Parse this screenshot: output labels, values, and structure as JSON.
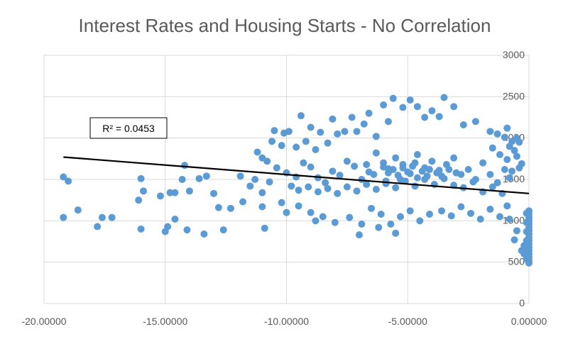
{
  "chart_data": {
    "type": "scatter",
    "title": "Interest Rates and Housing Starts - No Correlation",
    "xlabel": "",
    "ylabel": "",
    "xlim": [
      -20,
      0
    ],
    "ylim": [
      0,
      3000
    ],
    "x_ticks": [
      "-20.00000",
      "-15.00000",
      "-10.00000",
      "-5.00000",
      "0.00000"
    ],
    "y_ticks": [
      "0",
      "500",
      "1000",
      "1500",
      "2000",
      "2500",
      "3000"
    ],
    "grid": "vertical-and-horizontal",
    "legend": "none",
    "colors": {
      "points": "#5b9bd5",
      "trendline": "#000000",
      "grid": "#d9d9d9",
      "text": "#595959"
    },
    "trendline": {
      "type": "linear",
      "x": [
        -19.2,
        0
      ],
      "y": [
        1770,
        1330
      ],
      "label": "R² = 0.0453"
    },
    "series": [
      {
        "points": [
          [
            -19.2,
            1530
          ],
          [
            -19.0,
            1480
          ],
          [
            -19.2,
            1040
          ],
          [
            -18.6,
            1130
          ],
          [
            -17.8,
            930
          ],
          [
            -17.6,
            1040
          ],
          [
            -17.2,
            1040
          ],
          [
            -16.0,
            1510
          ],
          [
            -15.9,
            1360
          ],
          [
            -16.1,
            1250
          ],
          [
            -16.0,
            900
          ],
          [
            -15.2,
            1300
          ],
          [
            -14.8,
            1340
          ],
          [
            -14.6,
            1340
          ],
          [
            -14.2,
            1670
          ],
          [
            -14.3,
            1500
          ],
          [
            -14.0,
            1360
          ],
          [
            -13.6,
            1510
          ],
          [
            -13.3,
            1540
          ],
          [
            -13.0,
            1330
          ],
          [
            -12.8,
            1160
          ],
          [
            -12.3,
            1150
          ],
          [
            -11.8,
            1230
          ],
          [
            -11.9,
            1540
          ],
          [
            -11.5,
            1420
          ],
          [
            -11.3,
            1500
          ],
          [
            -11.0,
            1340
          ],
          [
            -11.0,
            1170
          ],
          [
            -10.7,
            1470
          ],
          [
            -10.2,
            1220
          ],
          [
            -10.0,
            1100
          ],
          [
            -13.4,
            840
          ],
          [
            -12.6,
            890
          ],
          [
            -14.6,
            1020
          ],
          [
            -15.0,
            870
          ],
          [
            -14.9,
            930
          ],
          [
            -14.1,
            890
          ],
          [
            -10.9,
            910
          ],
          [
            -11.2,
            1830
          ],
          [
            -11.0,
            1760
          ],
          [
            -10.6,
            1960
          ],
          [
            -10.5,
            2090
          ],
          [
            -10.2,
            1910
          ],
          [
            -10.1,
            2060
          ],
          [
            -9.9,
            2080
          ],
          [
            -9.6,
            1890
          ],
          [
            -9.4,
            2270
          ],
          [
            -9.2,
            1960
          ],
          [
            -9.0,
            2130
          ],
          [
            -8.8,
            1860
          ],
          [
            -8.6,
            2070
          ],
          [
            -8.3,
            1940
          ],
          [
            -8.1,
            2230
          ],
          [
            -7.9,
            2050
          ],
          [
            -7.6,
            2080
          ],
          [
            -7.3,
            2250
          ],
          [
            -7.1,
            2080
          ],
          [
            -6.8,
            2170
          ],
          [
            -6.6,
            2300
          ],
          [
            -6.3,
            2020
          ],
          [
            -6.0,
            2400
          ],
          [
            -5.8,
            2200
          ],
          [
            -5.6,
            2480
          ],
          [
            -5.2,
            2370
          ],
          [
            -4.9,
            2460
          ],
          [
            -4.6,
            2380
          ],
          [
            -4.3,
            2250
          ],
          [
            -4.0,
            2330
          ],
          [
            -3.7,
            2260
          ],
          [
            -3.5,
            2490
          ],
          [
            -3.1,
            2380
          ],
          [
            -2.7,
            2160
          ],
          [
            -2.2,
            2200
          ],
          [
            -1.6,
            2080
          ],
          [
            -1.3,
            2050
          ],
          [
            -1.0,
            2010
          ],
          [
            -0.9,
            2120
          ],
          [
            -0.7,
            1960
          ],
          [
            -10.8,
            1720
          ],
          [
            -10.4,
            1640
          ],
          [
            -10.0,
            1580
          ],
          [
            -9.6,
            1530
          ],
          [
            -9.3,
            1700
          ],
          [
            -9.0,
            1650
          ],
          [
            -8.7,
            1520
          ],
          [
            -8.4,
            1460
          ],
          [
            -8.1,
            1600
          ],
          [
            -7.8,
            1550
          ],
          [
            -7.5,
            1720
          ],
          [
            -7.2,
            1660
          ],
          [
            -6.9,
            1500
          ],
          [
            -6.6,
            1590
          ],
          [
            -6.3,
            1820
          ],
          [
            -6.0,
            1700
          ],
          [
            -5.8,
            1630
          ],
          [
            -5.5,
            1760
          ],
          [
            -5.2,
            1680
          ],
          [
            -4.9,
            1570
          ],
          [
            -4.6,
            1800
          ],
          [
            -4.3,
            1640
          ],
          [
            -4.0,
            1720
          ],
          [
            -3.7,
            1610
          ],
          [
            -3.4,
            1680
          ],
          [
            -3.1,
            1760
          ],
          [
            -2.8,
            1560
          ],
          [
            -2.5,
            1620
          ],
          [
            -2.2,
            1500
          ],
          [
            -1.9,
            1700
          ],
          [
            -1.6,
            1560
          ],
          [
            -1.3,
            1460
          ],
          [
            -1.0,
            1620
          ],
          [
            -0.8,
            1520
          ],
          [
            -9.8,
            1420
          ],
          [
            -9.5,
            1370
          ],
          [
            -9.1,
            1410
          ],
          [
            -8.7,
            1350
          ],
          [
            -8.3,
            1390
          ],
          [
            -7.9,
            1330
          ],
          [
            -7.5,
            1410
          ],
          [
            -7.1,
            1360
          ],
          [
            -6.7,
            1440
          ],
          [
            -6.3,
            1380
          ],
          [
            -5.9,
            1450
          ],
          [
            -5.5,
            1400
          ],
          [
            -5.1,
            1480
          ],
          [
            -4.7,
            1420
          ],
          [
            -4.3,
            1500
          ],
          [
            -3.9,
            1440
          ],
          [
            -3.5,
            1510
          ],
          [
            -3.1,
            1430
          ],
          [
            -2.7,
            1400
          ],
          [
            -2.3,
            1470
          ],
          [
            -1.9,
            1350
          ],
          [
            -1.5,
            1410
          ],
          [
            -1.1,
            1330
          ],
          [
            -9.5,
            1180
          ],
          [
            -9.0,
            1100
          ],
          [
            -8.5,
            1050
          ],
          [
            -8.0,
            980
          ],
          [
            -7.4,
            1040
          ],
          [
            -6.9,
            960
          ],
          [
            -6.5,
            1150
          ],
          [
            -6.1,
            1080
          ],
          [
            -5.7,
            960
          ],
          [
            -5.3,
            1050
          ],
          [
            -4.9,
            1120
          ],
          [
            -4.5,
            1000
          ],
          [
            -4.1,
            1080
          ],
          [
            -3.6,
            1120
          ],
          [
            -3.2,
            1060
          ],
          [
            -2.8,
            1170
          ],
          [
            -2.4,
            1090
          ],
          [
            -2.0,
            1020
          ],
          [
            -1.6,
            1140
          ],
          [
            -1.2,
            1050
          ],
          [
            -0.9,
            1180
          ],
          [
            -7.0,
            830
          ],
          [
            -6.2,
            920
          ],
          [
            -5.5,
            850
          ],
          [
            -8.8,
            1000
          ],
          [
            -6.0,
            1650
          ],
          [
            -5.8,
            1580
          ],
          [
            -5.6,
            1620
          ],
          [
            -5.4,
            1550
          ],
          [
            -5.2,
            1640
          ],
          [
            -5.0,
            1590
          ],
          [
            -4.8,
            1660
          ],
          [
            -4.6,
            1520
          ],
          [
            -4.4,
            1600
          ],
          [
            -4.2,
            1540
          ],
          [
            -5.9,
            1480
          ],
          [
            -5.3,
            1500
          ],
          [
            -4.7,
            1700
          ],
          [
            -4.1,
            1620
          ],
          [
            -6.4,
            1560
          ],
          [
            -6.7,
            1680
          ],
          [
            -3.8,
            1580
          ],
          [
            -3.6,
            1540
          ],
          [
            -3.3,
            1620
          ],
          [
            -3.0,
            1580
          ],
          [
            -1.5,
            1880
          ],
          [
            -1.2,
            1800
          ],
          [
            -0.9,
            1740
          ],
          [
            -0.6,
            1850
          ],
          [
            -0.4,
            1950
          ],
          [
            -0.5,
            1780
          ],
          [
            -0.3,
            1690
          ],
          [
            -0.8,
            1900
          ],
          [
            -0.5,
            2000
          ],
          [
            -0.4,
            1640
          ],
          [
            -0.7,
            1600
          ],
          [
            0.0,
            1120
          ],
          [
            0.0,
            1080
          ],
          [
            0.0,
            1040
          ],
          [
            0.0,
            1000
          ],
          [
            0.0,
            960
          ],
          [
            0.0,
            920
          ],
          [
            0.0,
            880
          ],
          [
            0.0,
            840
          ],
          [
            0.0,
            800
          ],
          [
            0.0,
            760
          ],
          [
            0.0,
            720
          ],
          [
            0.0,
            680
          ],
          [
            0.0,
            640
          ],
          [
            0.0,
            600
          ],
          [
            0.0,
            560
          ],
          [
            0.0,
            520
          ],
          [
            0.0,
            490
          ],
          [
            -0.1,
            1090
          ],
          [
            -0.1,
            980
          ],
          [
            -0.1,
            870
          ],
          [
            -0.1,
            760
          ],
          [
            -0.1,
            650
          ],
          [
            -0.1,
            540
          ],
          [
            -0.2,
            700
          ],
          [
            -0.2,
            600
          ],
          [
            -0.3,
            640
          ],
          [
            -0.6,
            770
          ],
          [
            -0.5,
            880
          ],
          [
            -0.8,
            1020
          ]
        ]
      }
    ]
  }
}
